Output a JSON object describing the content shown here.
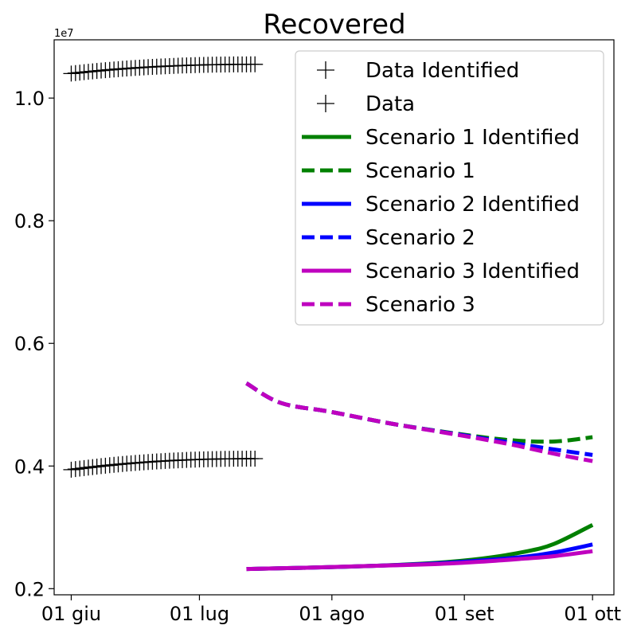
{
  "chart_data": {
    "type": "line",
    "title": "Recovered",
    "xlabel": "",
    "ylabel": "",
    "y_offset_label": "1e7",
    "x_ticks": [
      {
        "date": "2020-06-01",
        "label": "01 giu"
      },
      {
        "date": "2020-07-01",
        "label": "01 lug"
      },
      {
        "date": "2020-08-01",
        "label": "01 ago"
      },
      {
        "date": "2020-09-01",
        "label": "01 set"
      },
      {
        "date": "2020-10-01",
        "label": "01 ott"
      }
    ],
    "y_ticks": [
      {
        "value": 0.2,
        "label": "0.2"
      },
      {
        "value": 0.4,
        "label": "0.4"
      },
      {
        "value": 0.6,
        "label": "0.6"
      },
      {
        "value": 0.8,
        "label": "0.8"
      },
      {
        "value": 1.0,
        "label": "1.0"
      }
    ],
    "xlim": [
      "2020-05-28",
      "2020-10-06"
    ],
    "ylim": [
      0.19,
      1.095
    ],
    "grid": false,
    "legend_position": "top-right",
    "series": [
      {
        "name": "Data Identified",
        "color": "#000000",
        "style": "marker-line",
        "marker": "+",
        "x_start": "2020-06-01",
        "x_end": "2020-07-14",
        "y_start": 0.394,
        "y_end": 0.412
      },
      {
        "name": "Data",
        "color": "#000000",
        "style": "marker-line",
        "marker": "+",
        "x_start": "2020-06-01",
        "x_end": "2020-07-14",
        "y_start": 1.04,
        "y_end": 1.055
      },
      {
        "name": "Scenario 1 Identified",
        "color": "#008000",
        "style": "solid",
        "points": [
          [
            "2020-07-12",
            0.232
          ],
          [
            "2020-07-25",
            0.234
          ],
          [
            "2020-08-10",
            0.237
          ],
          [
            "2020-08-25",
            0.242
          ],
          [
            "2020-09-05",
            0.249
          ],
          [
            "2020-09-15",
            0.26
          ],
          [
            "2020-09-22",
            0.273
          ],
          [
            "2020-10-01",
            0.304
          ]
        ]
      },
      {
        "name": "Scenario 1",
        "color": "#008000",
        "style": "dashed",
        "points": [
          [
            "2020-07-12",
            0.535
          ],
          [
            "2020-07-20",
            0.503
          ],
          [
            "2020-08-01",
            0.488
          ],
          [
            "2020-08-15",
            0.469
          ],
          [
            "2020-09-01",
            0.451
          ],
          [
            "2020-09-12",
            0.442
          ],
          [
            "2020-09-22",
            0.44
          ],
          [
            "2020-10-01",
            0.447
          ]
        ]
      },
      {
        "name": "Scenario 2 Identified",
        "color": "#0000ff",
        "style": "solid",
        "points": [
          [
            "2020-07-12",
            0.232
          ],
          [
            "2020-07-25",
            0.234
          ],
          [
            "2020-08-10",
            0.237
          ],
          [
            "2020-08-25",
            0.241
          ],
          [
            "2020-09-05",
            0.246
          ],
          [
            "2020-09-15",
            0.252
          ],
          [
            "2020-09-22",
            0.259
          ],
          [
            "2020-10-01",
            0.272
          ]
        ]
      },
      {
        "name": "Scenario 2",
        "color": "#0000ff",
        "style": "dashed",
        "points": [
          [
            "2020-07-12",
            0.535
          ],
          [
            "2020-07-20",
            0.503
          ],
          [
            "2020-08-01",
            0.488
          ],
          [
            "2020-08-15",
            0.469
          ],
          [
            "2020-09-01",
            0.45
          ],
          [
            "2020-09-12",
            0.438
          ],
          [
            "2020-09-22",
            0.427
          ],
          [
            "2020-10-01",
            0.418
          ]
        ]
      },
      {
        "name": "Scenario 3 Identified",
        "color": "#bf00bf",
        "style": "solid",
        "points": [
          [
            "2020-07-12",
            0.232
          ],
          [
            "2020-07-25",
            0.234
          ],
          [
            "2020-08-10",
            0.237
          ],
          [
            "2020-08-25",
            0.24
          ],
          [
            "2020-09-05",
            0.244
          ],
          [
            "2020-09-15",
            0.249
          ],
          [
            "2020-09-22",
            0.253
          ],
          [
            "2020-10-01",
            0.261
          ]
        ]
      },
      {
        "name": "Scenario 3",
        "color": "#bf00bf",
        "style": "dashed",
        "points": [
          [
            "2020-07-12",
            0.535
          ],
          [
            "2020-07-20",
            0.503
          ],
          [
            "2020-08-01",
            0.488
          ],
          [
            "2020-08-15",
            0.469
          ],
          [
            "2020-09-01",
            0.449
          ],
          [
            "2020-09-12",
            0.435
          ],
          [
            "2020-09-22",
            0.42
          ],
          [
            "2020-10-01",
            0.408
          ]
        ]
      }
    ]
  }
}
